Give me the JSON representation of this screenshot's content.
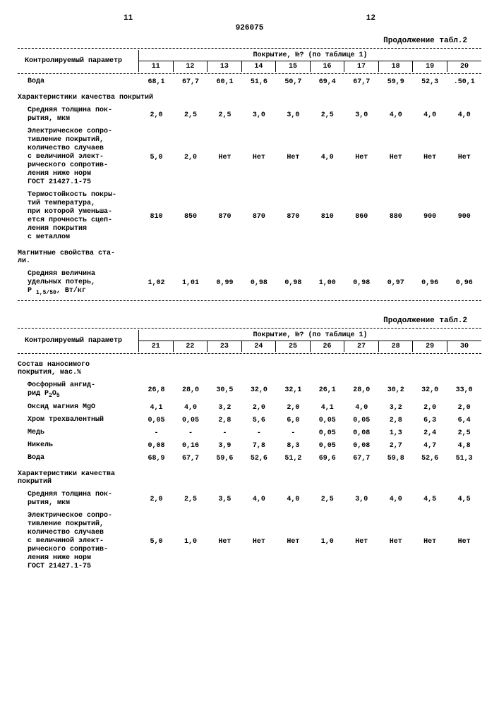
{
  "doc_number": "926075",
  "page_left": "11",
  "page_right": "12",
  "caption": "Продолжение табл.2",
  "header_param": "Контролируемый параметр",
  "header_coating": "Покрытие, №? (по таблице 1)",
  "table_a": {
    "cols": [
      "11",
      "12",
      "13",
      "14",
      "15",
      "16",
      "17",
      "18",
      "19",
      "20"
    ],
    "rows": [
      {
        "label": "Вода",
        "vals": [
          "68,1",
          "67,7",
          "60,1",
          "51,6",
          "50,7",
          "69,4",
          "67,7",
          "59,9",
          "52,3",
          ".50,1"
        ]
      }
    ],
    "section_quality": "Характеристики качества покрытий",
    "rows_q": [
      {
        "label": "Средняя толщина пок-<br>рытия, мкм",
        "vals": [
          "2,0",
          "2,5",
          "2,5",
          "3,0",
          "3,0",
          "2,5",
          "3,0",
          "4,0",
          "4,0",
          "4,0"
        ]
      },
      {
        "label": "Электрическое сопро-<br>тивление покрытий,<br>количество случаев<br>с величиной элект-<br>рического сопротив-<br>ления ниже норм<br>ГОСТ 21427.1-75",
        "vals": [
          "5,0",
          "2,0",
          "Нет",
          "Нет",
          "Нет",
          "4,0",
          "Нет",
          "Нет",
          "Нет",
          "Нет"
        ]
      },
      {
        "label": "Термостойкость покры-<br>тий температура,<br>при которой уменьша-<br>ется прочность сцеп-<br>ления покрытия<br>с металлом",
        "vals": [
          "810",
          "850",
          "870",
          "870",
          "870",
          "810",
          "860",
          "880",
          "900",
          "900"
        ]
      }
    ],
    "section_mag": "Магнитные свойства ста-<br>ли.",
    "rows_m": [
      {
        "label": "Средняя величина<br>удельных потерь,<br>Р <span class='sub'>1,5/50</span>, Вт/кг",
        "vals": [
          "1,02",
          "1,01",
          "0,99",
          "0,98",
          "0,98",
          "1,00",
          "0,98",
          "0,97",
          "0,96",
          "0,96"
        ]
      }
    ]
  },
  "table_b": {
    "cols": [
      "21",
      "22",
      "23",
      "24",
      "25",
      "26",
      "27",
      "28",
      "29",
      "30"
    ],
    "section_comp": "Состав наносимого<br>покрытия, мас.%",
    "rows_c": [
      {
        "label": "Фосфорный ангид-<br>рид Р<span class='sub'>2</span>О<span class='sub'>5</span>",
        "vals": [
          "26,8",
          "28,0",
          "30,5",
          "32,0",
          "32,1",
          "26,1",
          "28,0",
          "30,2",
          "32,0",
          "33,0"
        ]
      },
      {
        "label": "Оксид магния MgO",
        "vals": [
          "4,1",
          "4,0",
          "3,2",
          "2,0",
          "2,0",
          "4,1",
          "4,0",
          "3,2",
          "2,0",
          "2,0"
        ]
      },
      {
        "label": "Хром трехвалентный",
        "vals": [
          "0,05",
          "0,05",
          "2,8",
          "5,6",
          "6,0",
          "0,05",
          "0,05",
          "2,8",
          "6,3",
          "6,4"
        ]
      },
      {
        "label": "Медь",
        "vals": [
          "-",
          "-",
          "-",
          "-",
          "-",
          "0,05",
          "0,08",
          "1,3",
          "2,4",
          "2,5"
        ]
      },
      {
        "label": "Никель",
        "vals": [
          "0,08",
          "0,16",
          "3,9",
          "7,8",
          "8,3",
          "0,05",
          "0,08",
          "2,7",
          "4,7",
          "4,8"
        ]
      },
      {
        "label": "Вода",
        "vals": [
          "68,9",
          "67,7",
          "59,6",
          "52,6",
          "51,2",
          "69,6",
          "67,7",
          "59,8",
          "52,6",
          "51,3"
        ]
      }
    ],
    "section_quality": "Характеристики качества<br>покрытий",
    "rows_q": [
      {
        "label": "Средняя толщина пок-<br>рытия, мкм",
        "vals": [
          "2,0",
          "2,5",
          "3,5",
          "4,0",
          "4,0",
          "2,5",
          "3,0",
          "4,0",
          "4,5",
          "4,5"
        ]
      },
      {
        "label": "Электрическое сопро-<br>тивление покрытий,<br>количество случаев<br>с величиной элект-<br>рического сопротив-<br>ления ниже норм<br>ГОСТ 21427.1-75",
        "vals": [
          "5,0",
          "1,0",
          "Нет",
          "Нет",
          "Нет",
          "1,0",
          "Нет",
          "Нет",
          "Нет",
          "Нет"
        ]
      }
    ]
  }
}
